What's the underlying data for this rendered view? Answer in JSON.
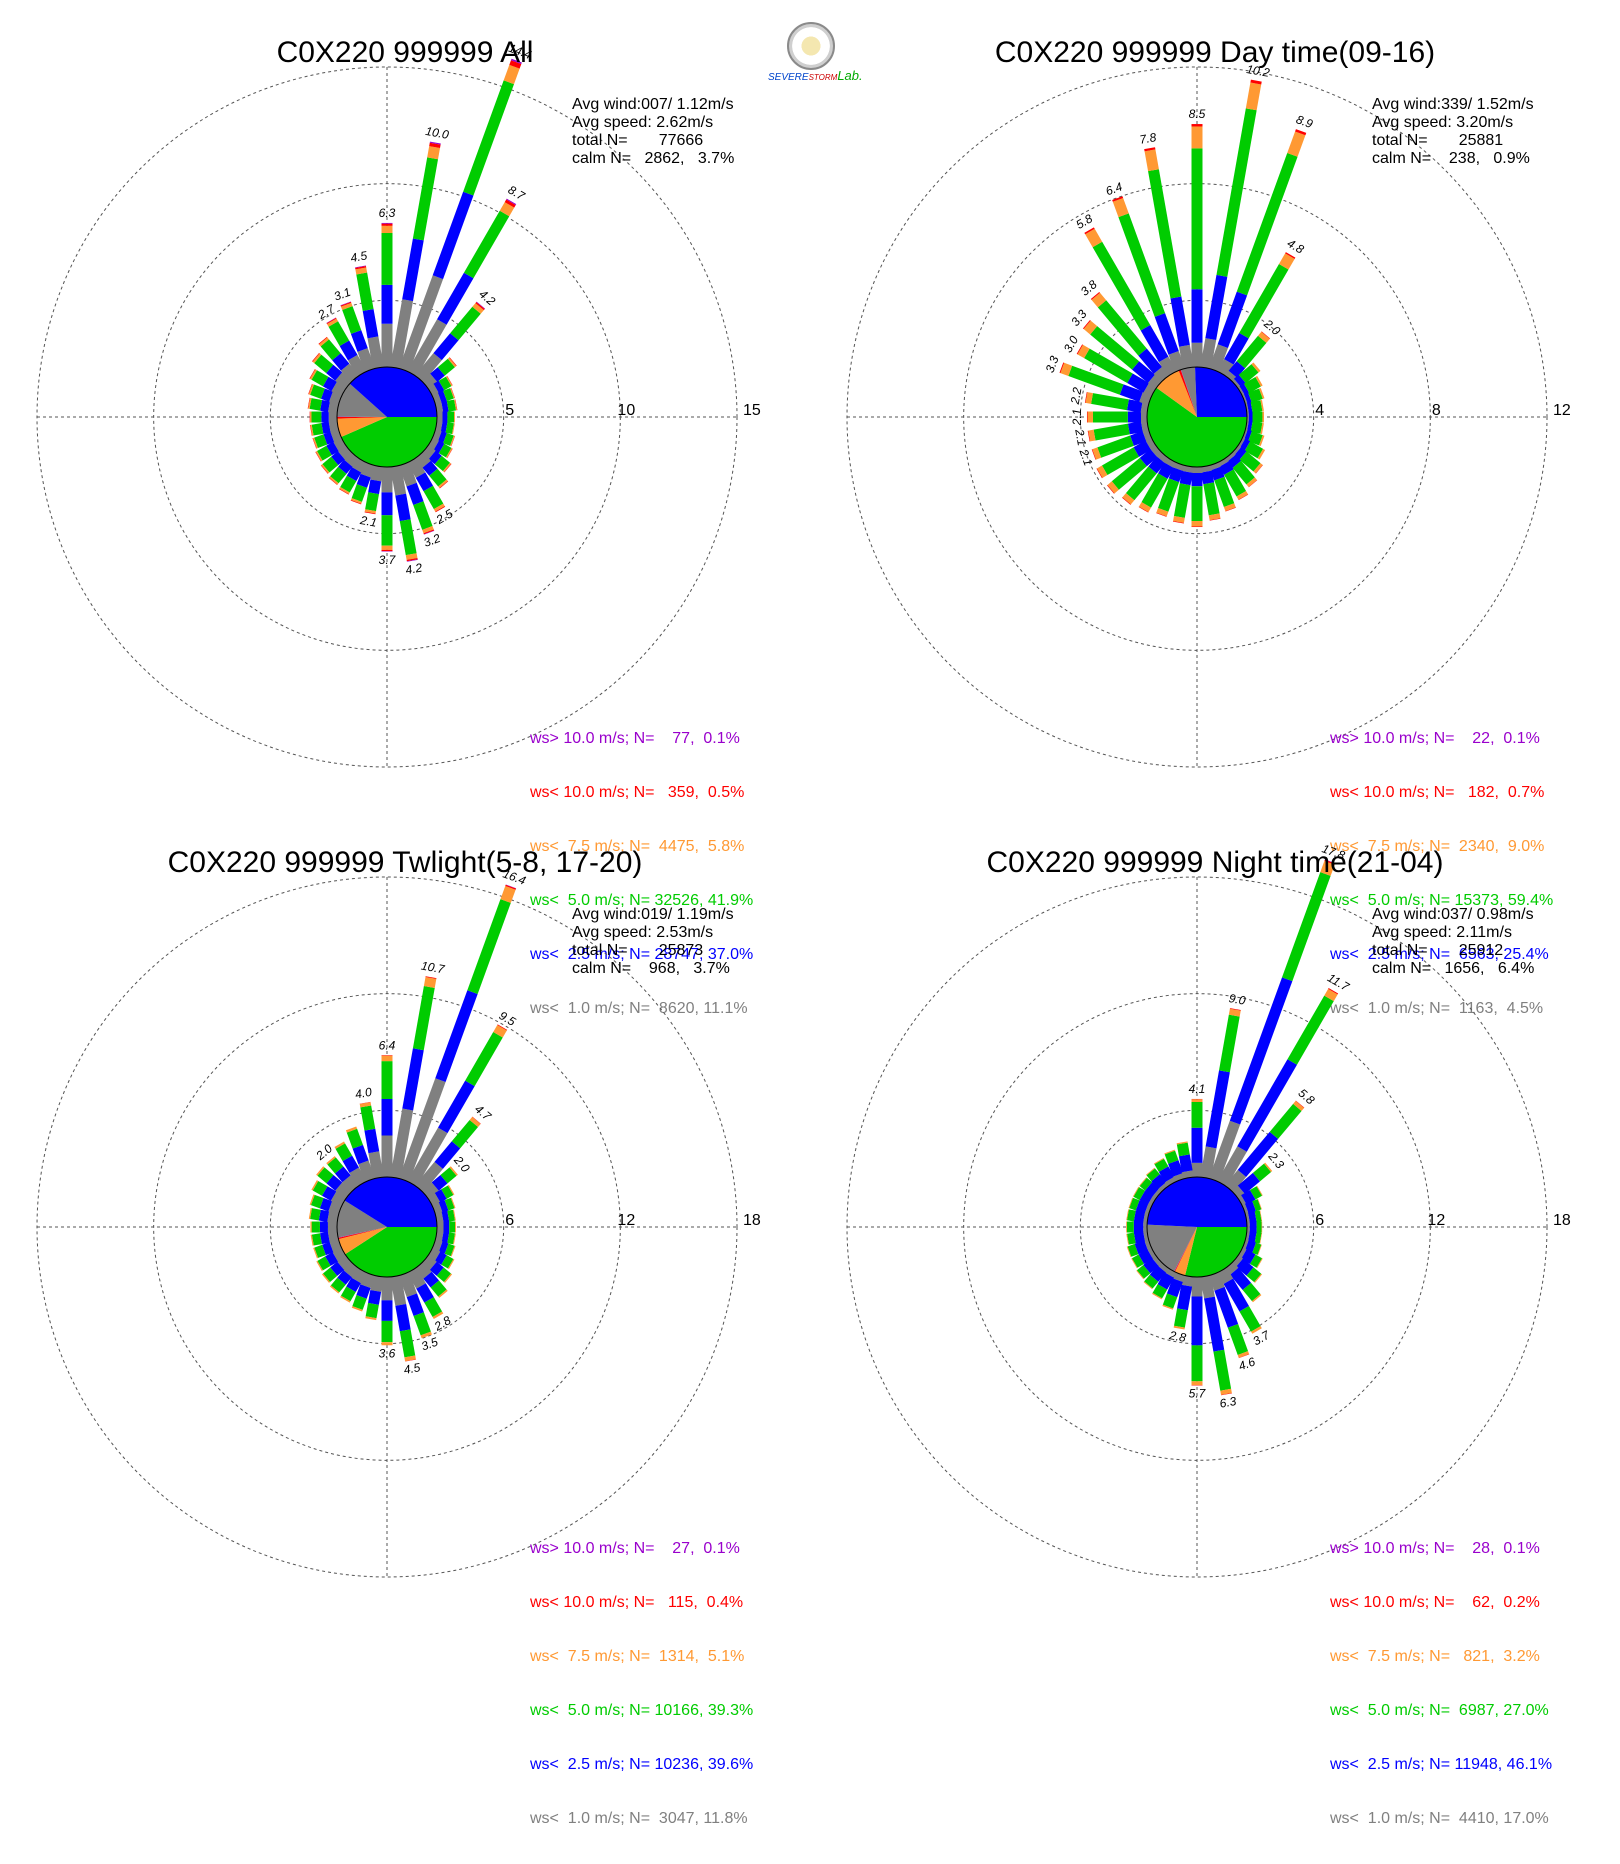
{
  "logo": {
    "word_1": "SEVERE",
    "word_2": "STORM",
    "word_3": "Lab."
  },
  "colors": {
    "gt10": "#9900cc",
    "lt10": "#ff0000",
    "lt75": "#ff9933",
    "lt50": "#00cc00",
    "lt25": "#0000ff",
    "lt10ms": "#808080"
  },
  "panels": [
    {
      "title": "C0X220 999999 All",
      "info": [
        "Avg wind:007/ 1.12m/s",
        "Avg speed: 2.62m/s",
        "total N=       77666",
        "calm N=   2862,   3.7%"
      ],
      "legend": [
        "ws> 10.0 m/s; N=    77,  0.1%",
        "ws< 10.0 m/s; N=   359,  0.5%",
        "ws<  7.5 m/s; N=  4475,  5.8%",
        "ws<  5.0 m/s; N= 32526, 41.9%",
        "ws<  2.5 m/s; N= 28747, 37.0%",
        "ws<  1.0 m/s; N=  8620, 11.1%"
      ]
    },
    {
      "title": "C0X220 999999 Day time(09-16)",
      "info": [
        "Avg wind:339/ 1.52m/s",
        "Avg speed: 3.20m/s",
        "total N=       25881",
        "calm N=    238,   0.9%"
      ],
      "legend": [
        "ws> 10.0 m/s; N=    22,  0.1%",
        "ws< 10.0 m/s; N=   182,  0.7%",
        "ws<  7.5 m/s; N=  2340,  9.0%",
        "ws<  5.0 m/s; N= 15373, 59.4%",
        "ws<  2.5 m/s; N=  6563, 25.4%",
        "ws<  1.0 m/s; N=  1163,  4.5%"
      ]
    },
    {
      "title": "C0X220 999999 Twlight(5-8, 17-20)",
      "info": [
        "Avg wind:019/ 1.19m/s",
        "Avg speed: 2.53m/s",
        "total N=       25873",
        "calm N=    968,   3.7%"
      ],
      "legend": [
        "ws> 10.0 m/s; N=    27,  0.1%",
        "ws< 10.0 m/s; N=   115,  0.4%",
        "ws<  7.5 m/s; N=  1314,  5.1%",
        "ws<  5.0 m/s; N= 10166, 39.3%",
        "ws<  2.5 m/s; N= 10236, 39.6%",
        "ws<  1.0 m/s; N=  3047, 11.8%"
      ]
    },
    {
      "title": "C0X220 999999 Night time(21-04)",
      "info": [
        "Avg wind:037/ 0.98m/s",
        "Avg speed: 2.11m/s",
        "total N=       25912",
        "calm N=   1656,   6.4%"
      ],
      "legend": [
        "ws> 10.0 m/s; N=    28,  0.1%",
        "ws< 10.0 m/s; N=    62,  0.2%",
        "ws<  7.5 m/s; N=   821,  3.2%",
        "ws<  5.0 m/s; N=  6987, 27.0%",
        "ws<  2.5 m/s; N= 11948, 46.1%",
        "ws<  1.0 m/s; N=  4410, 17.0%"
      ]
    }
  ],
  "chart_data": [
    {
      "type": "wind-rose",
      "title": "C0X220 999999 All",
      "rmax": 15,
      "ring_ticks": [
        "5",
        "10",
        "15"
      ],
      "bins": [
        [
          0,
          1
        ],
        [
          1,
          2.5
        ],
        [
          2.5,
          5
        ],
        [
          5,
          7.5
        ],
        [
          7.5,
          10
        ],
        [
          10,
          99
        ]
      ],
      "pie_fractions": [
        0.111,
        0.37,
        0.419,
        0.058,
        0.005,
        0.001
      ],
      "directions_deg": [
        0,
        10,
        20,
        30,
        40,
        50,
        60,
        70,
        80,
        90,
        100,
        110,
        120,
        130,
        140,
        150,
        160,
        170,
        180,
        190,
        200,
        210,
        220,
        230,
        240,
        250,
        260,
        270,
        280,
        290,
        300,
        310,
        320,
        330,
        340,
        350
      ],
      "totals": [
        6.3,
        10.0,
        14.4,
        8.7,
        4.2,
        1.6,
        1.0,
        0.9,
        0.9,
        0.8,
        0.8,
        0.9,
        1.0,
        1.3,
        1.7,
        2.5,
        3.2,
        4.2,
        3.7,
        2.1,
        1.8,
        1.6,
        1.5,
        1.4,
        1.3,
        1.2,
        1.2,
        1.2,
        1.3,
        1.4,
        1.6,
        1.9,
        2.2,
        2.7,
        3.1,
        4.5
      ],
      "labels": {
        "0": "6.3",
        "10": "10.0",
        "20": "14.4",
        "30": "8.7",
        "40": "4.2",
        "150": "2.5",
        "160": "3.2",
        "170": "4.2",
        "180": "3.7",
        "190": "2.1",
        "330": "2.7",
        "340": "3.1",
        "350": "4.5"
      },
      "bin_shares": [
        0.3,
        0.27,
        0.36,
        0.05,
        0.015,
        0.005
      ]
    },
    {
      "type": "wind-rose",
      "title": "C0X220 999999 Day time(09-16)",
      "rmax": 12,
      "ring_ticks": [
        "4",
        "8",
        "12"
      ],
      "bins": [
        [
          0,
          1
        ],
        [
          1,
          2.5
        ],
        [
          2.5,
          5
        ],
        [
          5,
          7.5
        ],
        [
          7.5,
          10
        ],
        [
          10,
          99
        ]
      ],
      "pie_fractions": [
        0.045,
        0.254,
        0.594,
        0.09,
        0.007,
        0.001
      ],
      "directions_deg": [
        0,
        10,
        20,
        30,
        40,
        50,
        60,
        70,
        80,
        90,
        100,
        110,
        120,
        130,
        140,
        150,
        160,
        170,
        180,
        190,
        200,
        210,
        220,
        230,
        240,
        250,
        260,
        270,
        280,
        290,
        300,
        310,
        320,
        330,
        340,
        350
      ],
      "totals": [
        8.5,
        10.2,
        8.9,
        4.8,
        2.0,
        1.0,
        0.8,
        0.7,
        0.6,
        0.6,
        0.6,
        0.7,
        0.9,
        1.1,
        1.3,
        1.5,
        1.7,
        1.9,
        2.1,
        2.0,
        1.9,
        2.0,
        2.1,
        2.2,
        2.2,
        2.1,
        2.1,
        2.1,
        2.2,
        3.3,
        3.0,
        3.3,
        3.8,
        5.8,
        6.4,
        7.8
      ],
      "labels": {
        "0": "8.5",
        "10": "10.2",
        "20": "8.9",
        "30": "4.8",
        "40": "2.0",
        "250": "2.1",
        "260": "2.1",
        "270": "2.1",
        "280": "2.2",
        "290": "3.3",
        "300": "3.0",
        "310": "3.3",
        "320": "3.8",
        "330": "5.8",
        "340": "6.4",
        "350": "7.8"
      },
      "bin_shares": [
        0.1,
        0.22,
        0.58,
        0.09,
        0.01,
        0.0
      ]
    },
    {
      "type": "wind-rose",
      "title": "C0X220 999999 Twlight(5-8, 17-20)",
      "rmax": 18,
      "ring_ticks": [
        "6",
        "12",
        "18"
      ],
      "bins": [
        [
          0,
          1
        ],
        [
          1,
          2.5
        ],
        [
          2.5,
          5
        ],
        [
          5,
          7.5
        ],
        [
          7.5,
          10
        ],
        [
          10,
          99
        ]
      ],
      "pie_fractions": [
        0.118,
        0.396,
        0.393,
        0.051,
        0.004,
        0.001
      ],
      "directions_deg": [
        0,
        10,
        20,
        30,
        40,
        50,
        60,
        70,
        80,
        90,
        100,
        110,
        120,
        130,
        140,
        150,
        160,
        170,
        180,
        190,
        200,
        210,
        220,
        230,
        240,
        250,
        260,
        270,
        280,
        290,
        300,
        310,
        320,
        330,
        340,
        350
      ],
      "totals": [
        6.4,
        10.7,
        16.4,
        9.5,
        4.7,
        2.0,
        1.3,
        1.1,
        1.0,
        1.0,
        1.0,
        1.1,
        1.3,
        1.6,
        2.0,
        2.8,
        3.5,
        4.5,
        3.6,
        2.3,
        2.0,
        1.8,
        1.7,
        1.6,
        1.5,
        1.4,
        1.4,
        1.4,
        1.5,
        1.6,
        1.8,
        2.0,
        2.0,
        2.4,
        2.9,
        4.0
      ],
      "labels": {
        "0": "6.4",
        "10": "10.7",
        "20": "16.4",
        "30": "9.5",
        "40": "4.7",
        "50": "2.0",
        "150": "2.8",
        "160": "3.5",
        "170": "4.5",
        "180": "3.6",
        "320": "2.0",
        "350": "4.0"
      },
      "bin_shares": [
        0.34,
        0.3,
        0.31,
        0.045,
        0.004,
        0.001
      ]
    },
    {
      "type": "wind-rose",
      "title": "C0X220 999999 Night time(21-04)",
      "rmax": 18,
      "ring_ticks": [
        "6",
        "12",
        "18"
      ],
      "bins": [
        [
          0,
          1
        ],
        [
          1,
          2.5
        ],
        [
          2.5,
          5
        ],
        [
          5,
          7.5
        ],
        [
          7.5,
          10
        ],
        [
          10,
          99
        ]
      ],
      "pie_fractions": [
        0.17,
        0.461,
        0.27,
        0.032,
        0.002,
        0.001
      ],
      "directions_deg": [
        0,
        10,
        20,
        30,
        40,
        50,
        60,
        70,
        80,
        90,
        100,
        110,
        120,
        130,
        140,
        150,
        160,
        170,
        180,
        190,
        200,
        210,
        220,
        230,
        240,
        250,
        260,
        270,
        280,
        290,
        300,
        310,
        320,
        330,
        340,
        350
      ],
      "totals": [
        4.1,
        9.0,
        17.8,
        11.7,
        5.8,
        2.3,
        1.2,
        0.9,
        0.8,
        0.8,
        0.8,
        0.9,
        1.2,
        1.6,
        2.3,
        3.7,
        4.6,
        6.3,
        5.7,
        2.8,
        1.9,
        1.6,
        1.4,
        1.3,
        1.2,
        1.2,
        1.1,
        1.1,
        1.1,
        1.1,
        1.1,
        1.1,
        1.2,
        1.4,
        1.6,
        1.9
      ],
      "labels": {
        "0": "4.1",
        "10": "9.0",
        "20": "17.8",
        "30": "11.7",
        "40": "5.8",
        "50": "2.3",
        "150": "3.7",
        "160": "4.6",
        "170": "6.3",
        "180": "5.7",
        "190": "2.8"
      },
      "bin_shares": [
        0.18,
        0.45,
        0.33,
        0.035,
        0.004,
        0.001
      ]
    }
  ]
}
